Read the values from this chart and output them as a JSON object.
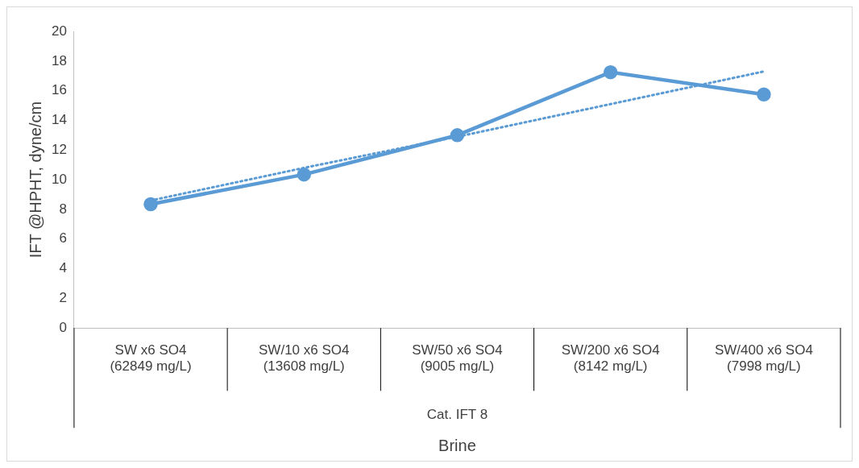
{
  "chart_data": {
    "type": "line",
    "xlabel": "Brine",
    "ylabel": "IFT @HPHT, dyne/cm",
    "categories": [
      "SW x6 SO4\n(62849 mg/L)",
      "SW/10 x6 SO4\n(13608 mg/L)",
      "SW/50 x6 SO4\n(9005 mg/L)",
      "SW/200 x6 SO4\n(8142 mg/L)",
      "SW/400 x6 SO4\n(7998 mg/L)"
    ],
    "series": [
      {
        "color": "#5b9bd5",
        "values": [
          8.35,
          10.35,
          13.0,
          17.25,
          15.75
        ],
        "marker": "circle",
        "line_style": "solid"
      },
      {
        "type": "line",
        "color": "#5b9bd5",
        "values": [
          8.6,
          10.8,
          12.9,
          15.1,
          17.3
        ],
        "marker": "none",
        "line_style": "dotted"
      }
    ],
    "annotations": [
      "Cat. IFT 8"
    ],
    "ylim": [
      0,
      20
    ],
    "yticks": [
      0,
      2,
      4,
      6,
      8,
      10,
      12,
      14,
      16,
      18,
      20
    ],
    "grid": false,
    "legend": false
  }
}
